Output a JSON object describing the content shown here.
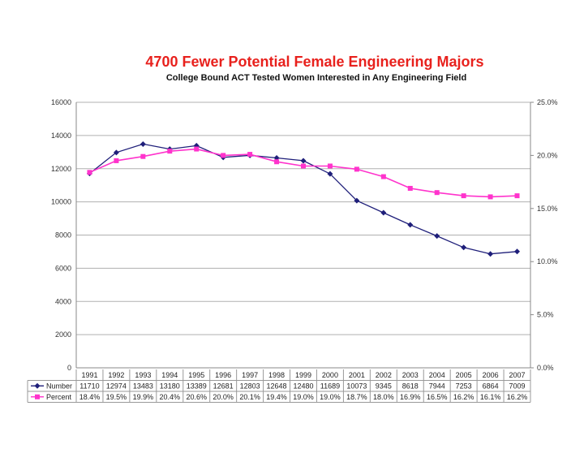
{
  "chart_data": {
    "type": "line",
    "title": "4700 Fewer Potential Female Engineering Majors",
    "subtitle": "College Bound ACT Tested Women Interested in Any Engineering Field",
    "categories": [
      "1991",
      "1992",
      "1993",
      "1994",
      "1995",
      "1996",
      "1997",
      "1998",
      "1999",
      "2000",
      "2001",
      "2002",
      "2003",
      "2004",
      "2005",
      "2006",
      "2007"
    ],
    "series": [
      {
        "name": "Number",
        "axis": "left",
        "color": "#1f1f7a",
        "marker": "diamond",
        "values": [
          11710,
          12974,
          13483,
          13180,
          13389,
          12681,
          12803,
          12648,
          12480,
          11689,
          10073,
          9345,
          8618,
          7944,
          7253,
          6864,
          7009
        ],
        "labels": [
          "11710",
          "12974",
          "13483",
          "13180",
          "13389",
          "12681",
          "12803",
          "12648",
          "12480",
          "11689",
          "10073",
          "9345",
          "8618",
          "7944",
          "7253",
          "6864",
          "7009"
        ]
      },
      {
        "name": "Percent",
        "axis": "right",
        "color": "#ff33cc",
        "marker": "square",
        "values": [
          18.4,
          19.5,
          19.9,
          20.4,
          20.6,
          20.0,
          20.1,
          19.4,
          19.0,
          19.0,
          18.7,
          18.0,
          16.9,
          16.5,
          16.2,
          16.1,
          16.2
        ],
        "labels": [
          "18.4%",
          "19.5%",
          "19.9%",
          "20.4%",
          "20.6%",
          "20.0%",
          "20.1%",
          "19.4%",
          "19.0%",
          "19.0%",
          "18.7%",
          "18.0%",
          "16.9%",
          "16.5%",
          "16.2%",
          "16.1%",
          "16.2%"
        ]
      }
    ],
    "y_left": {
      "min": 0,
      "max": 16000,
      "ticks": [
        "0",
        "2000",
        "4000",
        "6000",
        "8000",
        "10000",
        "12000",
        "14000",
        "16000"
      ]
    },
    "y_right": {
      "min": 0,
      "max": 25,
      "ticks": [
        "0.0%",
        "5.0%",
        "10.0%",
        "15.0%",
        "20.0%",
        "25.0%"
      ]
    },
    "grid": true,
    "legend": "data-table"
  }
}
